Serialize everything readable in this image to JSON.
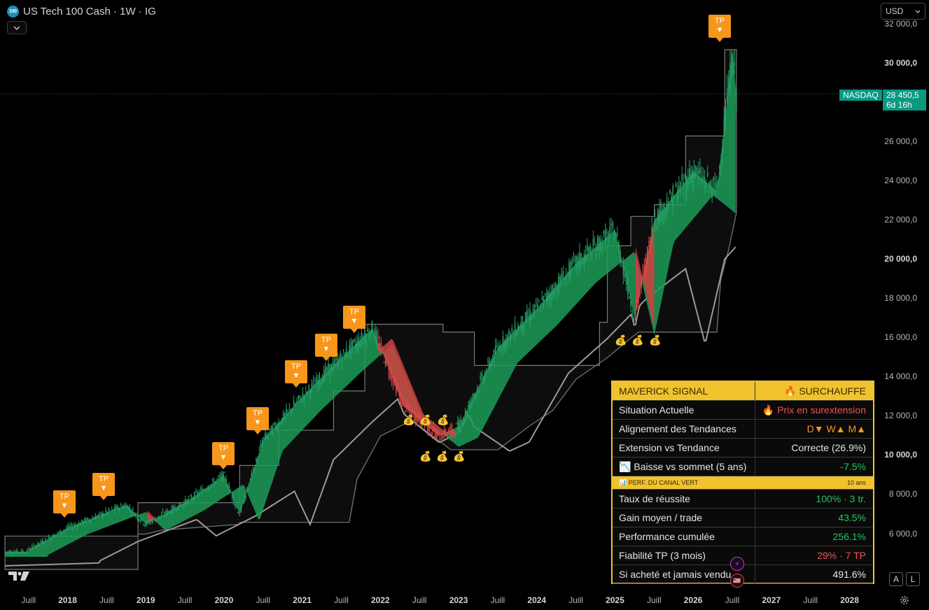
{
  "header": {
    "logo_text": "100",
    "title": "US Tech 100 Cash · 1W · IG",
    "currency": "USD"
  },
  "price_axis": {
    "ticks": [
      {
        "label": "32 000,0",
        "value": 32000,
        "bold": false
      },
      {
        "label": "30 000,0",
        "value": 30000,
        "bold": true
      },
      {
        "label": "26 000,0",
        "value": 26000,
        "bold": false
      },
      {
        "label": "24 000,0",
        "value": 24000,
        "bold": false
      },
      {
        "label": "22 000,0",
        "value": 22000,
        "bold": false
      },
      {
        "label": "20 000,0",
        "value": 20000,
        "bold": true
      },
      {
        "label": "18 000,0",
        "value": 18000,
        "bold": false
      },
      {
        "label": "16 000,0",
        "value": 16000,
        "bold": false
      },
      {
        "label": "14 000,0",
        "value": 14000,
        "bold": false
      },
      {
        "label": "12 000,0",
        "value": 12000,
        "bold": false
      },
      {
        "label": "10 000,0",
        "value": 10000,
        "bold": true
      },
      {
        "label": "8 000,0",
        "value": 8000,
        "bold": false
      },
      {
        "label": "6 000,0",
        "value": 6000,
        "bold": false
      }
    ],
    "symbol_tag": "NASDAQ",
    "last_price": "28 450,5",
    "countdown": "6d 16h",
    "last_price_color": "#089981"
  },
  "time_axis": [
    {
      "label": "Juill",
      "bold": false
    },
    {
      "label": "2018",
      "bold": true
    },
    {
      "label": "Juill",
      "bold": false
    },
    {
      "label": "2019",
      "bold": true
    },
    {
      "label": "Juill",
      "bold": false
    },
    {
      "label": "2020",
      "bold": true
    },
    {
      "label": "Juill",
      "bold": false
    },
    {
      "label": "2021",
      "bold": true
    },
    {
      "label": "Juill",
      "bold": false
    },
    {
      "label": "2022",
      "bold": true
    },
    {
      "label": "Juill",
      "bold": false
    },
    {
      "label": "2023",
      "bold": true
    },
    {
      "label": "Juill",
      "bold": false
    },
    {
      "label": "2024",
      "bold": true
    },
    {
      "label": "Juill",
      "bold": false
    },
    {
      "label": "2025",
      "bold": true
    },
    {
      "label": "Juill",
      "bold": false
    },
    {
      "label": "2026",
      "bold": true
    },
    {
      "label": "Juill",
      "bold": false
    },
    {
      "label": "2027",
      "bold": true
    },
    {
      "label": "Juill",
      "bold": false
    },
    {
      "label": "2028",
      "bold": true
    }
  ],
  "markers": {
    "tp_label": "TP",
    "tp_arrow": "▼",
    "tp_count": 9,
    "bag_glyph": "💰",
    "bag_count": 9
  },
  "chart_data": {
    "type": "line",
    "x": [
      2017.5,
      2018.0,
      2018.5,
      2018.75,
      2019.0,
      2019.5,
      2020.0,
      2020.2,
      2020.5,
      2021.0,
      2021.5,
      2021.9,
      2022.3,
      2022.75,
      2023.0,
      2023.5,
      2024.0,
      2024.5,
      2025.0,
      2025.25,
      2025.5,
      2026.0,
      2026.3,
      2026.5,
      2026.55
    ],
    "series": [
      {
        "values": [
          5200,
          6300,
          7100,
          7500,
          6500,
          7600,
          9000,
          7000,
          10800,
          13000,
          15000,
          16500,
          12500,
          11000,
          11500,
          15500,
          17500,
          19800,
          21500,
          17000,
          22000,
          24500,
          23500,
          30500,
          28450
        ]
      }
    ],
    "ylim": [
      4500,
      32500
    ],
    "xlim": [
      2017.2,
      2028.5
    ],
    "colors": {
      "up_candle": "#26a269",
      "down_candle": "#e04848",
      "trend_green": "#1c9c58",
      "trend_red": "#d04040",
      "long_ma": "#9a9a9a",
      "channel": "#7a7a7a"
    }
  },
  "panel": {
    "header_left": "MAVERICK SIGNAL",
    "header_right": "🔥 SURCHAUFFE",
    "rows": [
      {
        "label": "Situation Actuelle",
        "value": "🔥 Prix en surextension",
        "color": "red"
      },
      {
        "label": "Alignement des Tendances",
        "value": "D▼  W▲  M▲",
        "color": "orange"
      },
      {
        "label": "Extension vs Tendance",
        "value": "Correcte (26.9%)",
        "color": "white"
      },
      {
        "label": "📉 Baisse vs sommet (5 ans)",
        "value": "-7.5%",
        "color": "green"
      }
    ],
    "section_left": "📊 PERF. DU CANAL VERT",
    "section_right": "10 ans",
    "rows2": [
      {
        "label": "Taux de réussite",
        "value": "100% · 3 tr.",
        "color": "green"
      },
      {
        "label": "Gain moyen / trade",
        "value": "43.5%",
        "color": "green"
      },
      {
        "label": "Performance cumulée",
        "value": "256.1%",
        "color": "green"
      },
      {
        "label": "Fiabilité TP (3 mois)",
        "value": "29% · 7 TP",
        "color": "red"
      },
      {
        "label": "Si acheté et jamais vendu",
        "value": "491.6%",
        "color": "white"
      }
    ]
  },
  "controls": {
    "auto_label": "A",
    "log_label": "L"
  }
}
